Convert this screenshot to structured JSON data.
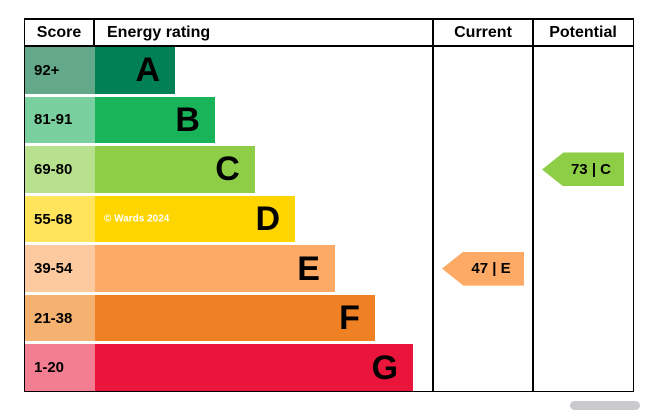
{
  "header": {
    "score": "Score",
    "energy_rating": "Energy rating",
    "current": "Current",
    "potential": "Potential"
  },
  "watermark": "© Wards 2024",
  "bands": [
    {
      "score": "92+",
      "letter": "A",
      "color": "#008054",
      "score_bg": "#63a888"
    },
    {
      "score": "81-91",
      "letter": "B",
      "color": "#19b459",
      "score_bg": "#79cf9d"
    },
    {
      "score": "69-80",
      "letter": "C",
      "color": "#8dce46",
      "score_bg": "#b8e18e"
    },
    {
      "score": "55-68",
      "letter": "D",
      "color": "#ffd500",
      "score_bg": "#ffe45c"
    },
    {
      "score": "39-54",
      "letter": "E",
      "color": "#fcaa65",
      "score_bg": "#fdc99e"
    },
    {
      "score": "21-38",
      "letter": "F",
      "color": "#ef8023",
      "score_bg": "#f5b170"
    },
    {
      "score": "1-20",
      "letter": "G",
      "color": "#e9153b",
      "score_bg": "#f37e92"
    }
  ],
  "current_arrow": {
    "label": "47 | E",
    "color": "#fcaa65"
  },
  "potential_arrow": {
    "label": "73 | C",
    "color": "#8dce46"
  },
  "chart_data": {
    "type": "bar",
    "title": "",
    "columns": [
      "Score",
      "Energy rating",
      "Current",
      "Potential"
    ],
    "categories": [
      "A",
      "B",
      "C",
      "D",
      "E",
      "F",
      "G"
    ],
    "score_ranges": [
      "92+",
      "81-91",
      "69-80",
      "55-68",
      "39-54",
      "21-38",
      "1-20"
    ],
    "band_colors": [
      "#008054",
      "#19b459",
      "#8dce46",
      "#ffd500",
      "#fcaa65",
      "#ef8023",
      "#e9153b"
    ],
    "bar_lengths_relative": [
      1,
      1.5,
      2,
      2.5,
      3,
      3.5,
      4
    ],
    "current": {
      "score": 47,
      "band": "E"
    },
    "potential": {
      "score": 73,
      "band": "C"
    },
    "grid": false,
    "legend": "none"
  }
}
